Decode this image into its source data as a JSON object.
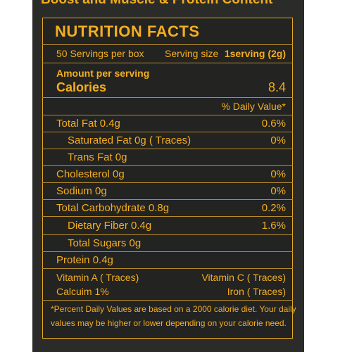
{
  "top_text": "Boost and Muscle & Protein Content",
  "panel": {
    "title": "NUTRITION FACTS",
    "servings": "50 Servings per box",
    "serving_size_label": "Serving size",
    "serving_size_value": "1serving (2g)",
    "amount_label": "Amount per serving",
    "calories_label": "Calories",
    "calories_value": "8.4",
    "dv_header": "% Daily Value*",
    "rows": [
      {
        "label": "Total Fat 0.4g",
        "dv": "0.6%"
      },
      {
        "label": "Saturated Fat 0g ( Traces)",
        "dv": "0%"
      },
      {
        "label": "Trans  Fat 0g",
        "dv": ""
      },
      {
        "label": "Cholesterol 0g",
        "dv": "0%"
      },
      {
        "label": "Sodium 0g",
        "dv": "0%"
      },
      {
        "label": "Total Carbohydrate 0.8g",
        "dv": "0.2%"
      },
      {
        "label": "Dietary Fiber  0.4g",
        "dv": "1.6%"
      },
      {
        "label": "Total Sugars 0g",
        "dv": ""
      },
      {
        "label": "Protein 0.4g",
        "dv": ""
      }
    ],
    "vitamin_a": "Vitamin A ( Traces)",
    "vitamin_c": "Vitamin C ( Traces)",
    "calcium": "Calcuim 1%",
    "iron": "Iron ( Traces)",
    "footnote_1": "*Percent Daily Values are based on a 2000 calorie diet.  Your daily",
    "footnote_2": "values may be higher or lower depending on your calorie need."
  }
}
